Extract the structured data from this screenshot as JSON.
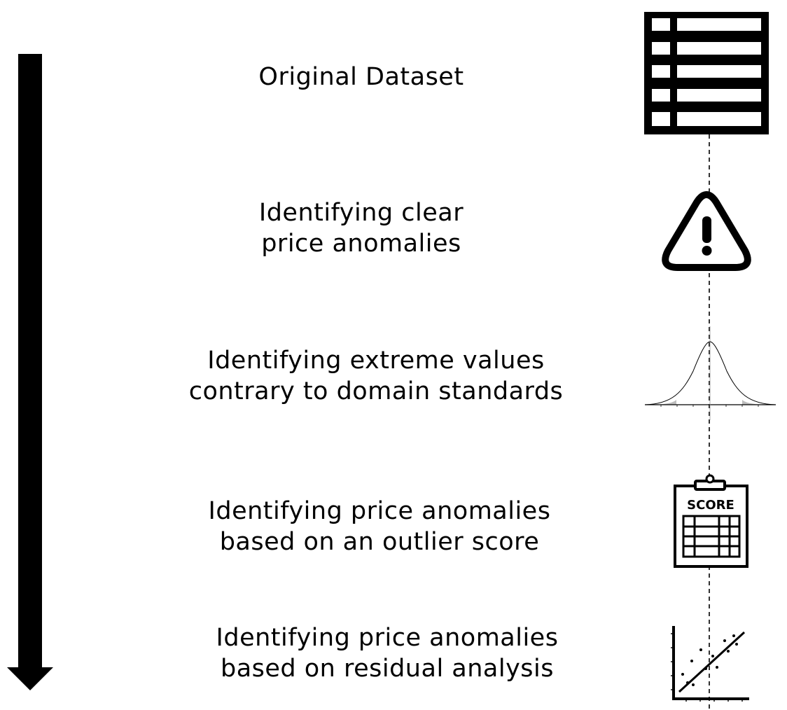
{
  "steps": [
    {
      "lines": [
        "Original Dataset"
      ],
      "icon": "table-icon"
    },
    {
      "lines": [
        "Identifying clear",
        "price anomalies"
      ],
      "icon": "warning-icon"
    },
    {
      "lines": [
        "Identifying extreme values",
        "contrary to domain standards"
      ],
      "icon": "normal-distribution-icon"
    },
    {
      "lines": [
        "Identifying price anomalies",
        "based on an outlier score"
      ],
      "icon": "score-clipboard-icon"
    },
    {
      "lines": [
        "Identifying price anomalies",
        "based on residual analysis"
      ],
      "icon": "regression-scatter-icon"
    }
  ],
  "icons": {
    "score_text": "SCORE"
  },
  "colors": {
    "foreground": "#000000",
    "background": "#ffffff",
    "shading": "#bdbdbd"
  }
}
